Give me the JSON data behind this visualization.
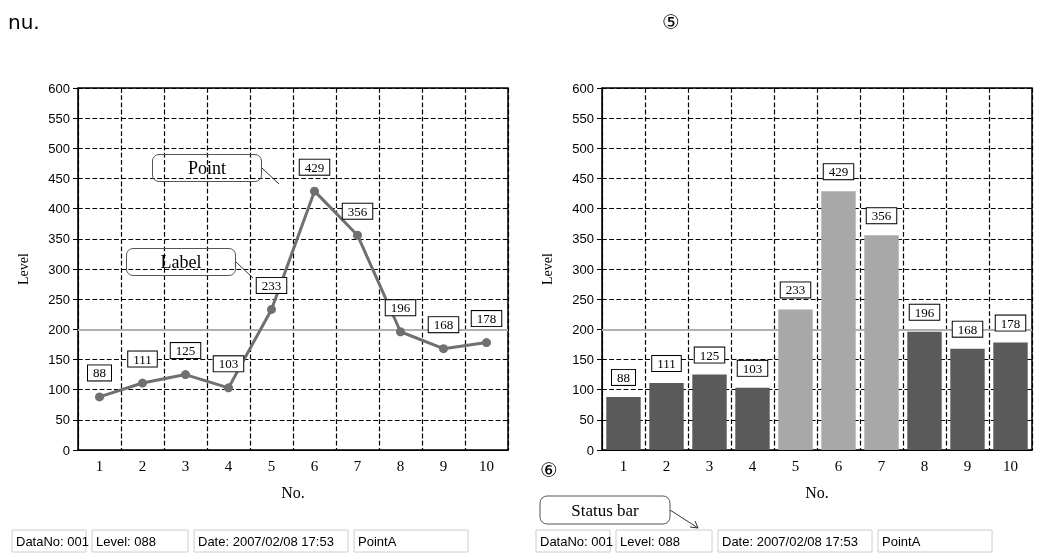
{
  "chart_data": [
    {
      "type": "line",
      "xlabel": "No.",
      "ylabel": "Level",
      "categories": [
        "1",
        "2",
        "3",
        "4",
        "5",
        "6",
        "7",
        "8",
        "9",
        "10"
      ],
      "series": [
        {
          "color": "#707070",
          "values": [
            88,
            111,
            125,
            103,
            233,
            429,
            356,
            196,
            168,
            178
          ]
        }
      ],
      "ylim": [
        0,
        600
      ],
      "yticks": [
        0,
        50,
        100,
        150,
        200,
        250,
        300,
        350,
        400,
        450,
        500,
        550,
        600
      ],
      "grid": true,
      "marker": "circle",
      "line_style": "solid",
      "data_labels": true,
      "ref_lines": [
        {
          "axis": "y",
          "value": 200,
          "color": "#b0b0b0"
        }
      ],
      "annotations": [
        "nu.",
        "Point",
        "Label",
        "DataNo: 001",
        "Level: 088",
        "Date: 2007/02/08 17:53",
        "PointA"
      ]
    },
    {
      "type": "bar",
      "xlabel": "No.",
      "ylabel": "Level",
      "categories": [
        "1",
        "2",
        "3",
        "4",
        "5",
        "6",
        "7",
        "8",
        "9",
        "10"
      ],
      "values": [
        88,
        111,
        125,
        103,
        233,
        429,
        356,
        196,
        168,
        178
      ],
      "colors": [
        "#5a5a5a",
        "#5a5a5a",
        "#5a5a5a",
        "#5a5a5a",
        "#a8a8a8",
        "#a8a8a8",
        "#a8a8a8",
        "#5a5a5a",
        "#5a5a5a",
        "#5a5a5a"
      ],
      "ylim": [
        0,
        600
      ],
      "yticks": [
        0,
        50,
        100,
        150,
        200,
        250,
        300,
        350,
        400,
        450,
        500,
        550,
        600
      ],
      "grid": true,
      "data_labels": true,
      "ref_lines": [
        {
          "axis": "y",
          "value": 200,
          "color": "#b0b0b0"
        }
      ],
      "annotations": [
        "⑤",
        "⑥",
        "Status bar",
        "DataNo: 001",
        "Level: 088",
        "Date: 2007/02/08 17:53",
        "PointA"
      ]
    }
  ]
}
